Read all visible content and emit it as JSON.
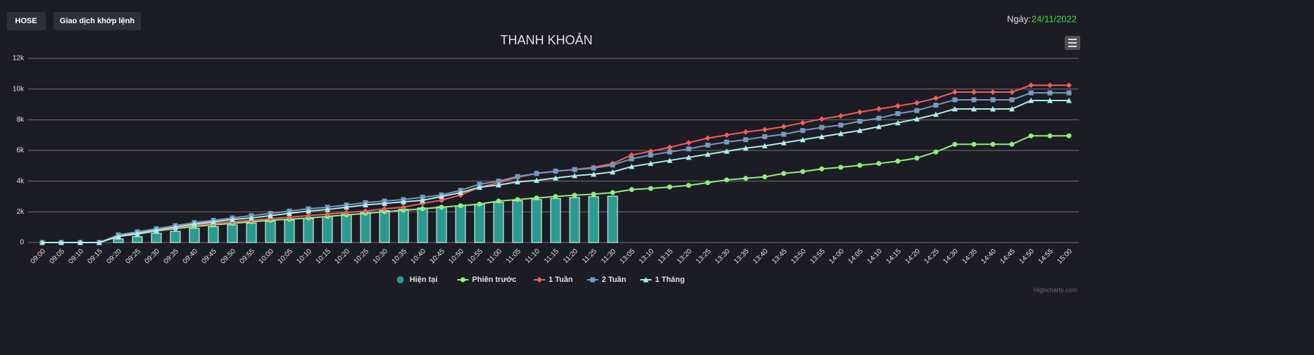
{
  "header": {
    "buttons": [
      "HOSE",
      "Giao dịch khớp lệnh"
    ],
    "date_label": "Ngày:",
    "date": "24/11/2022"
  },
  "credit": "Highcharts.com",
  "chart_data": {
    "type": "line",
    "title": "THANH KHOẢN",
    "categories": [
      "09:00",
      "09:05",
      "09:10",
      "09:15",
      "09:20",
      "09:25",
      "09:30",
      "09:35",
      "09:40",
      "09:45",
      "09:50",
      "09:55",
      "10:00",
      "10:05",
      "10:10",
      "10:15",
      "10:20",
      "10:25",
      "10:30",
      "10:35",
      "10:40",
      "10:45",
      "10:50",
      "10:55",
      "11:00",
      "11:05",
      "11:10",
      "11:15",
      "11:20",
      "11:25",
      "11:30",
      "13:05",
      "13:10",
      "13:15",
      "13:20",
      "13:25",
      "13:30",
      "13:35",
      "13:40",
      "13:45",
      "13:50",
      "13:55",
      "14:00",
      "14:05",
      "14:10",
      "14:15",
      "14:20",
      "14:25",
      "14:30",
      "14:35",
      "14:40",
      "14:45",
      "14:50",
      "14:55",
      "15:00"
    ],
    "ylim": [
      0,
      12000
    ],
    "yticks": [
      0,
      {
        "value": 2000,
        "label": "2k"
      },
      {
        "value": 4000,
        "label": "4k"
      },
      {
        "value": 6000,
        "label": "6k"
      },
      {
        "value": 8000,
        "label": "8k"
      },
      {
        "value": 10000,
        "label": "10k"
      },
      {
        "value": 12000,
        "label": "12k"
      }
    ],
    "grid": true,
    "legend": "bottom",
    "series": [
      {
        "name": "Hiện tại",
        "type": "bar",
        "color": "#2a9a92",
        "values": [
          0,
          0,
          0,
          0,
          230,
          380,
          600,
          730,
          930,
          1030,
          1150,
          1270,
          1380,
          1470,
          1560,
          1680,
          1840,
          1960,
          2080,
          2170,
          2250,
          2330,
          2400,
          2500,
          2620,
          2720,
          2800,
          2870,
          2930,
          2990,
          3020,
          null,
          null,
          null,
          null,
          null,
          null,
          null,
          null,
          null,
          null,
          null,
          null,
          null,
          null,
          null,
          null,
          null,
          null,
          null,
          null,
          null,
          null,
          null,
          null
        ]
      },
      {
        "name": "Phiên trước",
        "type": "line",
        "marker": "circle",
        "color": "#90ee7e",
        "values": [
          0,
          0,
          0,
          0,
          400,
          550,
          750,
          900,
          1050,
          1150,
          1250,
          1350,
          1450,
          1520,
          1600,
          1700,
          1800,
          1900,
          2000,
          2100,
          2200,
          2300,
          2400,
          2500,
          2700,
          2800,
          2900,
          3000,
          3080,
          3150,
          3250,
          3450,
          3520,
          3620,
          3720,
          3900,
          4080,
          4180,
          4280,
          4500,
          4620,
          4800,
          4900,
          5030,
          5150,
          5300,
          5500,
          5900,
          6400,
          6400,
          6400,
          6400,
          6950,
          6950,
          6950
        ]
      },
      {
        "name": "1 Tuần",
        "type": "line",
        "marker": "diamond",
        "color": "#f45b5b",
        "values": [
          0,
          0,
          0,
          0,
          450,
          600,
          800,
          950,
          1150,
          1250,
          1350,
          1450,
          1550,
          1650,
          1750,
          1850,
          1950,
          2050,
          2200,
          2300,
          2550,
          2750,
          3100,
          3600,
          3900,
          4250,
          4500,
          4650,
          4750,
          4900,
          5150,
          5700,
          5950,
          6200,
          6500,
          6800,
          7000,
          7200,
          7350,
          7550,
          7800,
          8050,
          8250,
          8500,
          8700,
          8900,
          9100,
          9400,
          9800,
          9800,
          9800,
          9800,
          10250,
          10250,
          10250
        ]
      },
      {
        "name": "2 Tuần",
        "type": "line",
        "marker": "square",
        "color": "#7798bf",
        "values": [
          0,
          0,
          0,
          0,
          500,
          700,
          900,
          1100,
          1300,
          1450,
          1600,
          1750,
          1900,
          2050,
          2200,
          2300,
          2450,
          2600,
          2700,
          2800,
          2950,
          3100,
          3400,
          3800,
          4000,
          4300,
          4500,
          4650,
          4750,
          4850,
          5050,
          5450,
          5700,
          5900,
          6100,
          6350,
          6550,
          6700,
          6900,
          7050,
          7300,
          7500,
          7650,
          7900,
          8100,
          8400,
          8600,
          8950,
          9300,
          9300,
          9300,
          9300,
          9750,
          9750,
          9750
        ]
      },
      {
        "name": "1 Tháng",
        "type": "line",
        "marker": "triangle",
        "color": "#aaeeee",
        "values": [
          0,
          0,
          0,
          0,
          400,
          600,
          800,
          1000,
          1200,
          1350,
          1500,
          1600,
          1750,
          1900,
          2050,
          2150,
          2300,
          2450,
          2550,
          2650,
          2750,
          3000,
          3250,
          3600,
          3750,
          3950,
          4050,
          4200,
          4350,
          4450,
          4600,
          4950,
          5150,
          5350,
          5550,
          5750,
          5950,
          6150,
          6300,
          6500,
          6700,
          6900,
          7100,
          7300,
          7550,
          7800,
          8050,
          8350,
          8700,
          8700,
          8700,
          8700,
          9250,
          9250,
          9250
        ]
      }
    ]
  }
}
